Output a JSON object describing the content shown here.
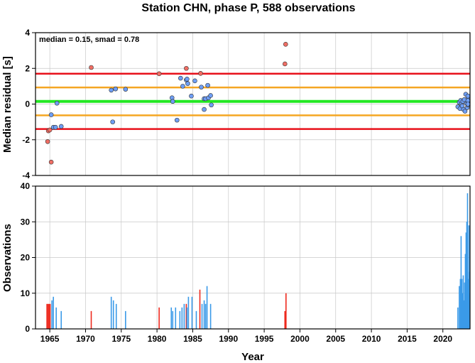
{
  "chart_data": [
    {
      "type": "scatter",
      "title": "Station CHN, phase P, 588 observations",
      "annotation": "median = 0.15, smad = 0.78",
      "ylabel": "Median residual [s]",
      "xlim": [
        1963,
        2023.8
      ],
      "ylim": [
        -4,
        4
      ],
      "yticks": [
        -4,
        -2,
        0,
        2,
        4
      ],
      "grid": true,
      "reference_lines": [
        {
          "y": 1.7,
          "color": "#e8101a"
        },
        {
          "y": 0.93,
          "color": "#f5a623"
        },
        {
          "y": 0.15,
          "color": "#22e822"
        },
        {
          "y": -0.63,
          "color": "#f5a623"
        },
        {
          "y": -1.4,
          "color": "#e8101a"
        }
      ],
      "series": [
        {
          "color": "#f06e64",
          "points": [
            [
              1964.7,
              -2.1
            ],
            [
              1964.8,
              -1.5
            ],
            [
              1965.0,
              -1.45
            ],
            [
              1965.2,
              -3.25
            ],
            [
              1970.8,
              2.05
            ],
            [
              1980.3,
              1.7
            ],
            [
              1984.1,
              2.0
            ],
            [
              1986.1,
              1.72
            ],
            [
              1998.0,
              3.35
            ],
            [
              1997.9,
              2.25
            ]
          ]
        },
        {
          "color": "#6e9ef5",
          "points": [
            [
              1965.2,
              -0.6
            ],
            [
              1965.5,
              -1.3
            ],
            [
              1965.8,
              -1.3
            ],
            [
              1966.0,
              0.05
            ],
            [
              1966.6,
              -1.25
            ],
            [
              1973.6,
              0.78
            ],
            [
              1973.8,
              -1.0
            ],
            [
              1974.2,
              0.85
            ],
            [
              1975.6,
              0.83
            ],
            [
              1982.1,
              0.35
            ],
            [
              1982.2,
              0.15
            ],
            [
              1982.8,
              -0.9
            ],
            [
              1983.3,
              1.45
            ],
            [
              1983.6,
              1.0
            ],
            [
              1984.1,
              1.35
            ],
            [
              1984.2,
              1.4
            ],
            [
              1984.3,
              1.15
            ],
            [
              1984.8,
              0.45
            ],
            [
              1985.3,
              1.3
            ],
            [
              1986.2,
              0.95
            ],
            [
              1986.6,
              0.3
            ],
            [
              1986.6,
              -0.3
            ],
            [
              1986.8,
              0.3
            ],
            [
              1987.1,
              1.05
            ],
            [
              1987.2,
              0.35
            ],
            [
              1987.5,
              0.48
            ],
            [
              1987.6,
              -0.05
            ],
            [
              2022.1,
              -0.15
            ],
            [
              2022.3,
              0.1
            ],
            [
              2022.4,
              -0.25
            ],
            [
              2022.5,
              0.2
            ],
            [
              2022.6,
              0.0
            ],
            [
              2022.7,
              -0.1
            ],
            [
              2022.8,
              0.15
            ],
            [
              2022.9,
              -0.3
            ],
            [
              2023.0,
              0.25
            ],
            [
              2023.1,
              -0.4
            ],
            [
              2023.2,
              0.55
            ],
            [
              2023.3,
              0.05
            ],
            [
              2023.4,
              -0.2
            ],
            [
              2023.5,
              0.1
            ],
            [
              2023.6,
              0.35
            ],
            [
              2023.7,
              -0.05
            ],
            [
              2023.8,
              0.2
            ],
            [
              2023.9,
              0.45
            ],
            [
              2024.0,
              0.0
            ]
          ]
        }
      ]
    },
    {
      "type": "bar",
      "xlabel": "Year",
      "ylabel": "Observations",
      "xlim": [
        1963,
        2023.8
      ],
      "ylim": [
        0,
        40
      ],
      "yticks": [
        0,
        10,
        20,
        30,
        40
      ],
      "xticks": [
        1965,
        1970,
        1975,
        1980,
        1985,
        1990,
        1995,
        2000,
        2005,
        2010,
        2015,
        2020
      ],
      "grid": true,
      "series": [
        {
          "color": "#ee2a1e",
          "bars": [
            [
              1964.6,
              7
            ],
            [
              1964.75,
              7
            ],
            [
              1964.9,
              7
            ],
            [
              1965.05,
              7
            ],
            [
              1970.8,
              5
            ],
            [
              1980.3,
              6
            ],
            [
              1984.1,
              7
            ],
            [
              1986.0,
              11
            ],
            [
              1997.9,
              5
            ],
            [
              1998.05,
              10
            ]
          ]
        },
        {
          "color": "#3a9ae8",
          "bars": [
            [
              1965.3,
              8
            ],
            [
              1965.5,
              9
            ],
            [
              1965.9,
              6
            ],
            [
              1966.6,
              5
            ],
            [
              1973.6,
              9
            ],
            [
              1973.9,
              8
            ],
            [
              1974.3,
              7
            ],
            [
              1975.6,
              5
            ],
            [
              1982.0,
              6
            ],
            [
              1982.2,
              5
            ],
            [
              1982.6,
              6
            ],
            [
              1983.2,
              5
            ],
            [
              1983.5,
              6
            ],
            [
              1983.8,
              7
            ],
            [
              1984.2,
              6
            ],
            [
              1984.4,
              9
            ],
            [
              1984.9,
              9
            ],
            [
              1985.5,
              5
            ],
            [
              1986.3,
              7
            ],
            [
              1986.6,
              8
            ],
            [
              1986.8,
              7
            ],
            [
              1987.0,
              12
            ],
            [
              1987.5,
              7
            ],
            [
              2022.1,
              6
            ],
            [
              2022.3,
              12
            ],
            [
              2022.45,
              14
            ],
            [
              2022.55,
              26
            ],
            [
              2022.65,
              14
            ],
            [
              2022.75,
              10
            ],
            [
              2022.85,
              15
            ],
            [
              2022.95,
              8
            ],
            [
              2023.05,
              13
            ],
            [
              2023.15,
              21
            ],
            [
              2023.25,
              27
            ],
            [
              2023.35,
              30
            ],
            [
              2023.45,
              38
            ],
            [
              2023.55,
              14
            ],
            [
              2023.65,
              10
            ],
            [
              2023.75,
              29
            ],
            [
              2023.85,
              16
            ],
            [
              2023.95,
              8
            ]
          ]
        }
      ]
    }
  ]
}
